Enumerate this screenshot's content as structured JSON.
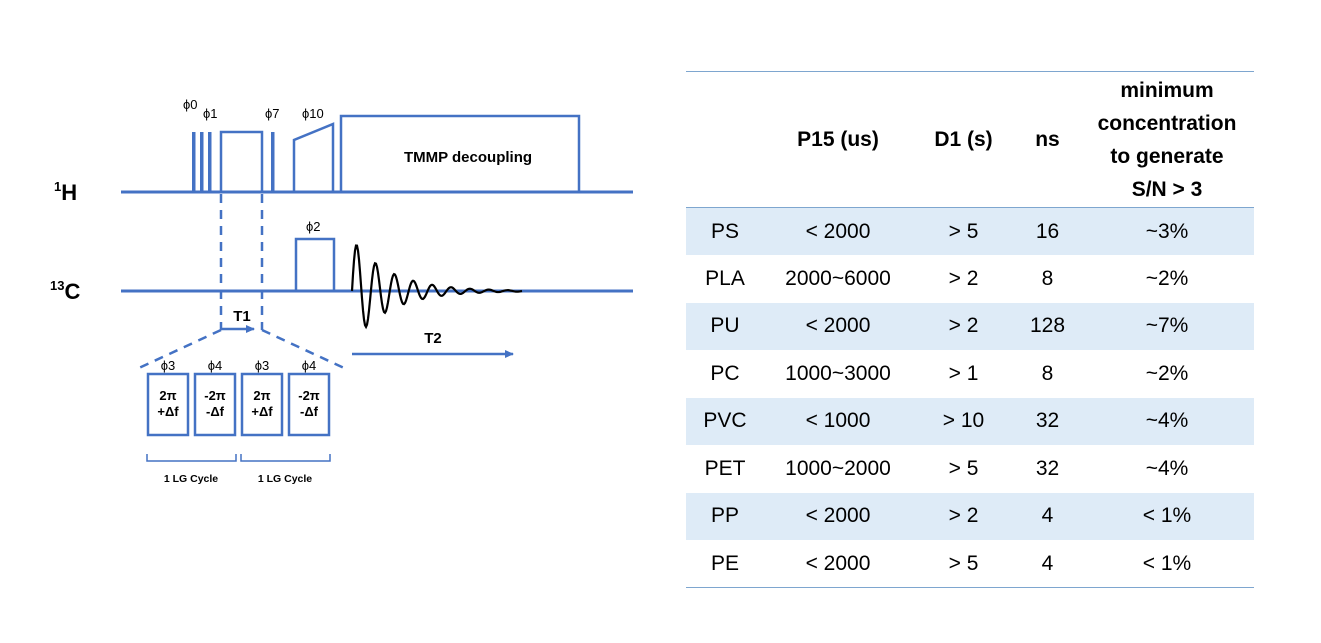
{
  "diagram": {
    "channel_h": {
      "label_mass": "1",
      "label_element": "H"
    },
    "channel_c": {
      "label_mass": "13",
      "label_element": "C"
    },
    "phases": {
      "phi0": "ϕ0",
      "phi1": "ϕ1",
      "phi7": "ϕ7",
      "phi10": "ϕ10",
      "phi2": "ϕ2"
    },
    "decoupling_label": "TMMP decoupling",
    "t1_label": "T1",
    "t2_label": "T2",
    "lg_blocks": [
      {
        "phase": "ϕ3",
        "line1": "2π",
        "line2": "+Δf"
      },
      {
        "phase": "ϕ4",
        "line1": "-2π",
        "line2": "-Δf"
      },
      {
        "phase": "ϕ3",
        "line1": "2π",
        "line2": "+Δf"
      },
      {
        "phase": "ϕ4",
        "line1": "-2π",
        "line2": "-Δf"
      }
    ],
    "lg_cycle_labels": [
      "1 LG Cycle",
      "1 LG Cycle"
    ],
    "line_color": "#4472c4"
  },
  "table": {
    "headers": {
      "col1": "",
      "col2": "P15 (us)",
      "col3": "D1 (s)",
      "col4": "ns",
      "col5": [
        "minimum",
        "concentration",
        "to generate",
        "S/N > 3"
      ]
    },
    "rows": [
      [
        "PS",
        "< 2000",
        "> 5",
        "16",
        "~3%"
      ],
      [
        "PLA",
        "2000~6000",
        "> 2",
        "8",
        "~2%"
      ],
      [
        "PU",
        "< 2000",
        "> 2",
        "128",
        "~7%"
      ],
      [
        "PC",
        "1000~3000",
        "> 1",
        "8",
        "~2%"
      ],
      [
        "PVC",
        "< 1000",
        "> 10",
        "32",
        "~4%"
      ],
      [
        "PET",
        "1000~2000",
        "> 5",
        "32",
        "~4%"
      ],
      [
        "PP",
        "< 2000",
        "> 2",
        "4",
        "< 1%"
      ],
      [
        "PE",
        "< 2000",
        "> 5",
        "4",
        "< 1%"
      ]
    ],
    "stripe_color": "#deebf7"
  }
}
